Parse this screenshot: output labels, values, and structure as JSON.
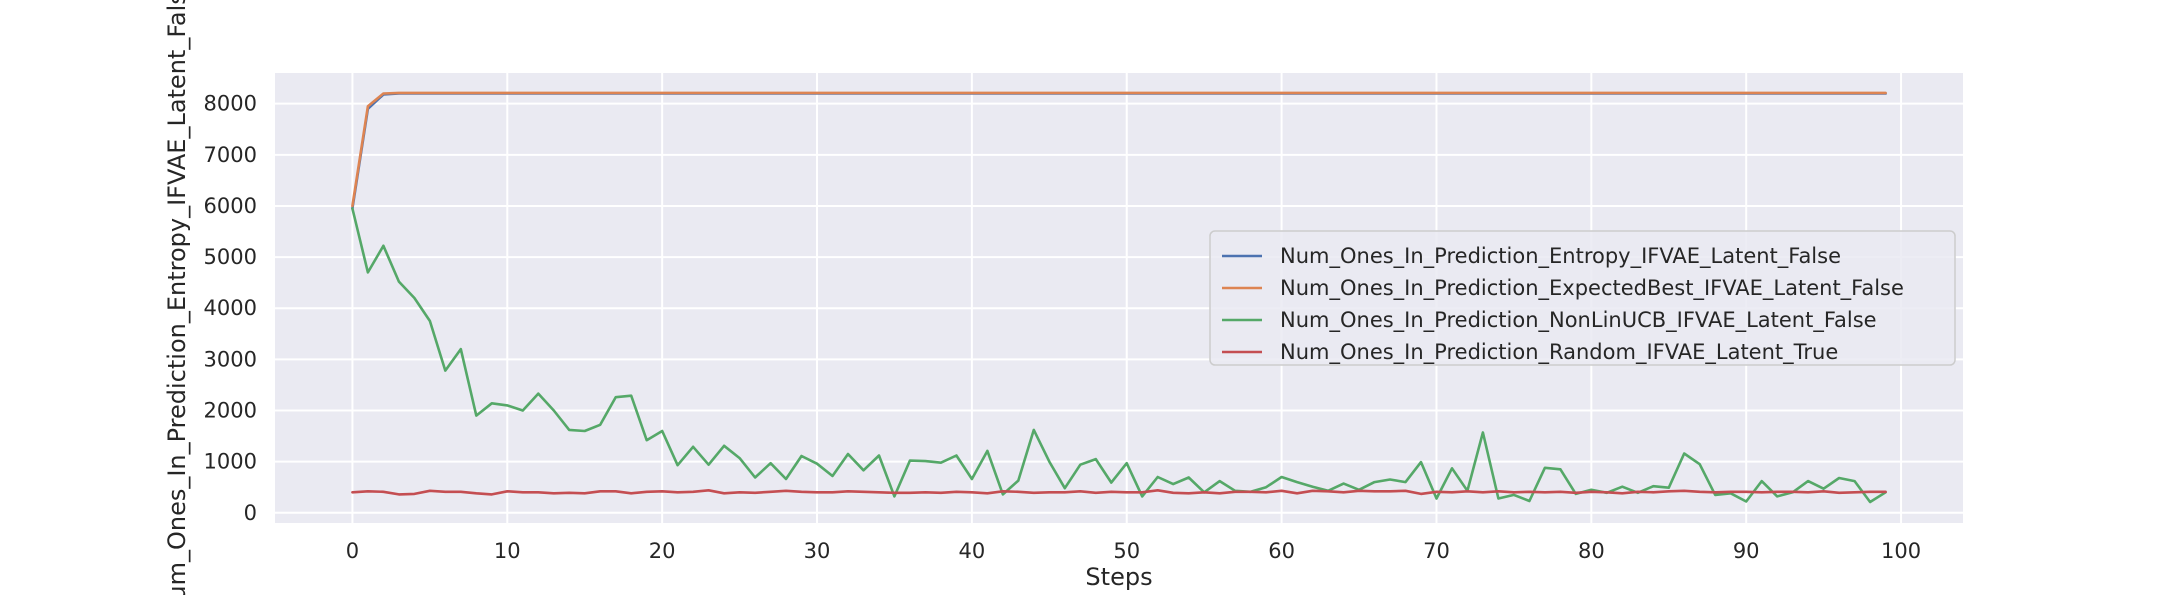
{
  "chart_data": {
    "type": "line",
    "xlabel": "Steps",
    "ylabel": "Num_Ones_In_Prediction_Entropy_IFVAE_Latent_False",
    "xlim": [
      -5,
      104
    ],
    "ylim": [
      -200,
      8600
    ],
    "xticks": [
      0,
      10,
      20,
      30,
      40,
      50,
      60,
      70,
      80,
      90,
      100
    ],
    "yticks": [
      0,
      1000,
      2000,
      3000,
      4000,
      5000,
      6000,
      7000,
      8000
    ],
    "grid": true,
    "legend_position": "center-right",
    "background": "#eaeaf2",
    "x": [
      0,
      1,
      2,
      3,
      4,
      5,
      6,
      7,
      8,
      9,
      10,
      11,
      12,
      13,
      14,
      15,
      16,
      17,
      18,
      19,
      20,
      21,
      22,
      23,
      24,
      25,
      26,
      27,
      28,
      29,
      30,
      31,
      32,
      33,
      34,
      35,
      36,
      37,
      38,
      39,
      40,
      41,
      42,
      43,
      44,
      45,
      46,
      47,
      48,
      49,
      50,
      51,
      52,
      53,
      54,
      55,
      56,
      57,
      58,
      59,
      60,
      61,
      62,
      63,
      64,
      65,
      66,
      67,
      68,
      69,
      70,
      71,
      72,
      73,
      74,
      75,
      76,
      77,
      78,
      79,
      80,
      81,
      82,
      83,
      84,
      85,
      86,
      87,
      88,
      89,
      90,
      91,
      92,
      93,
      94,
      95,
      96,
      97,
      98,
      99
    ],
    "series": [
      {
        "name": "Num_Ones_In_Prediction_Entropy_IFVAE_Latent_False",
        "color": "#4c72b0",
        "values": [
          5950,
          7900,
          8180,
          8200,
          8200,
          8200,
          8200,
          8200,
          8200,
          8200,
          8200,
          8200,
          8200,
          8200,
          8200,
          8200,
          8200,
          8200,
          8200,
          8200,
          8200,
          8200,
          8200,
          8200,
          8200,
          8200,
          8200,
          8200,
          8200,
          8200,
          8200,
          8200,
          8200,
          8200,
          8200,
          8200,
          8200,
          8200,
          8200,
          8200,
          8200,
          8200,
          8200,
          8200,
          8200,
          8200,
          8200,
          8200,
          8200,
          8200,
          8200,
          8200,
          8200,
          8200,
          8200,
          8200,
          8200,
          8200,
          8200,
          8200,
          8200,
          8200,
          8200,
          8200,
          8200,
          8200,
          8200,
          8200,
          8200,
          8200,
          8200,
          8200,
          8200,
          8200,
          8200,
          8200,
          8200,
          8200,
          8200,
          8200,
          8200,
          8200,
          8200,
          8200,
          8200,
          8200,
          8200,
          8200,
          8200,
          8200,
          8200,
          8200,
          8200,
          8200,
          8200,
          8200,
          8200,
          8200,
          8200,
          8200
        ]
      },
      {
        "name": "Num_Ones_In_Prediction_ExpectedBest_IFVAE_Latent_False",
        "color": "#dd8452",
        "values": [
          6000,
          7950,
          8200,
          8210,
          8210,
          8210,
          8210,
          8210,
          8210,
          8210,
          8210,
          8210,
          8210,
          8210,
          8210,
          8210,
          8210,
          8210,
          8210,
          8210,
          8210,
          8210,
          8210,
          8210,
          8210,
          8210,
          8210,
          8210,
          8210,
          8210,
          8210,
          8210,
          8210,
          8210,
          8210,
          8210,
          8210,
          8210,
          8210,
          8210,
          8210,
          8210,
          8210,
          8210,
          8210,
          8210,
          8210,
          8210,
          8210,
          8210,
          8210,
          8210,
          8210,
          8210,
          8210,
          8210,
          8210,
          8210,
          8210,
          8210,
          8210,
          8210,
          8210,
          8210,
          8210,
          8210,
          8210,
          8210,
          8210,
          8210,
          8210,
          8210,
          8210,
          8210,
          8210,
          8210,
          8210,
          8210,
          8210,
          8210,
          8210,
          8210,
          8210,
          8210,
          8210,
          8210,
          8210,
          8210,
          8210,
          8210,
          8210,
          8210,
          8210,
          8210,
          8210,
          8210,
          8210,
          8210,
          8210,
          8210
        ]
      },
      {
        "name": "Num_Ones_In_Prediction_NonLinUCB_IFVAE_Latent_False",
        "color": "#55a868",
        "values": [
          5950,
          4700,
          5220,
          4520,
          4200,
          3750,
          2780,
          3200,
          1900,
          2140,
          2100,
          2000,
          2330,
          2000,
          1620,
          1600,
          1720,
          2260,
          2290,
          1420,
          1600,
          930,
          1290,
          940,
          1310,
          1070,
          690,
          970,
          660,
          1110,
          960,
          720,
          1150,
          830,
          1120,
          320,
          1020,
          1010,
          980,
          1120,
          660,
          1210,
          360,
          630,
          1620,
          1000,
          480,
          940,
          1050,
          590,
          970,
          320,
          700,
          560,
          690,
          400,
          620,
          430,
          410,
          500,
          700,
          600,
          510,
          430,
          570,
          450,
          600,
          650,
          600,
          990,
          280,
          870,
          430,
          1570,
          280,
          350,
          230,
          880,
          850,
          370,
          450,
          390,
          510,
          390,
          520,
          490,
          1160,
          950,
          350,
          380,
          220,
          620,
          320,
          400,
          620,
          470,
          680,
          620,
          210,
          400
        ]
      },
      {
        "name": "Num_Ones_In_Prediction_Random_IFVAE_Latent_True",
        "color": "#c44e52",
        "values": [
          400,
          420,
          410,
          360,
          370,
          430,
          410,
          410,
          380,
          360,
          420,
          400,
          400,
          380,
          390,
          380,
          420,
          420,
          380,
          410,
          420,
          400,
          410,
          440,
          380,
          400,
          390,
          410,
          430,
          410,
          400,
          400,
          420,
          410,
          400,
          390,
          390,
          400,
          390,
          410,
          400,
          380,
          420,
          410,
          390,
          400,
          400,
          420,
          390,
          410,
          400,
          400,
          440,
          390,
          380,
          400,
          380,
          410,
          410,
          400,
          430,
          380,
          430,
          420,
          400,
          430,
          420,
          420,
          430,
          370,
          410,
          400,
          420,
          400,
          420,
          400,
          410,
          400,
          410,
          390,
          410,
          400,
          380,
          410,
          400,
          420,
          430,
          410,
          400,
          410,
          410,
          400,
          410,
          410,
          400,
          420,
          390,
          400,
          410,
          410
        ]
      }
    ]
  }
}
